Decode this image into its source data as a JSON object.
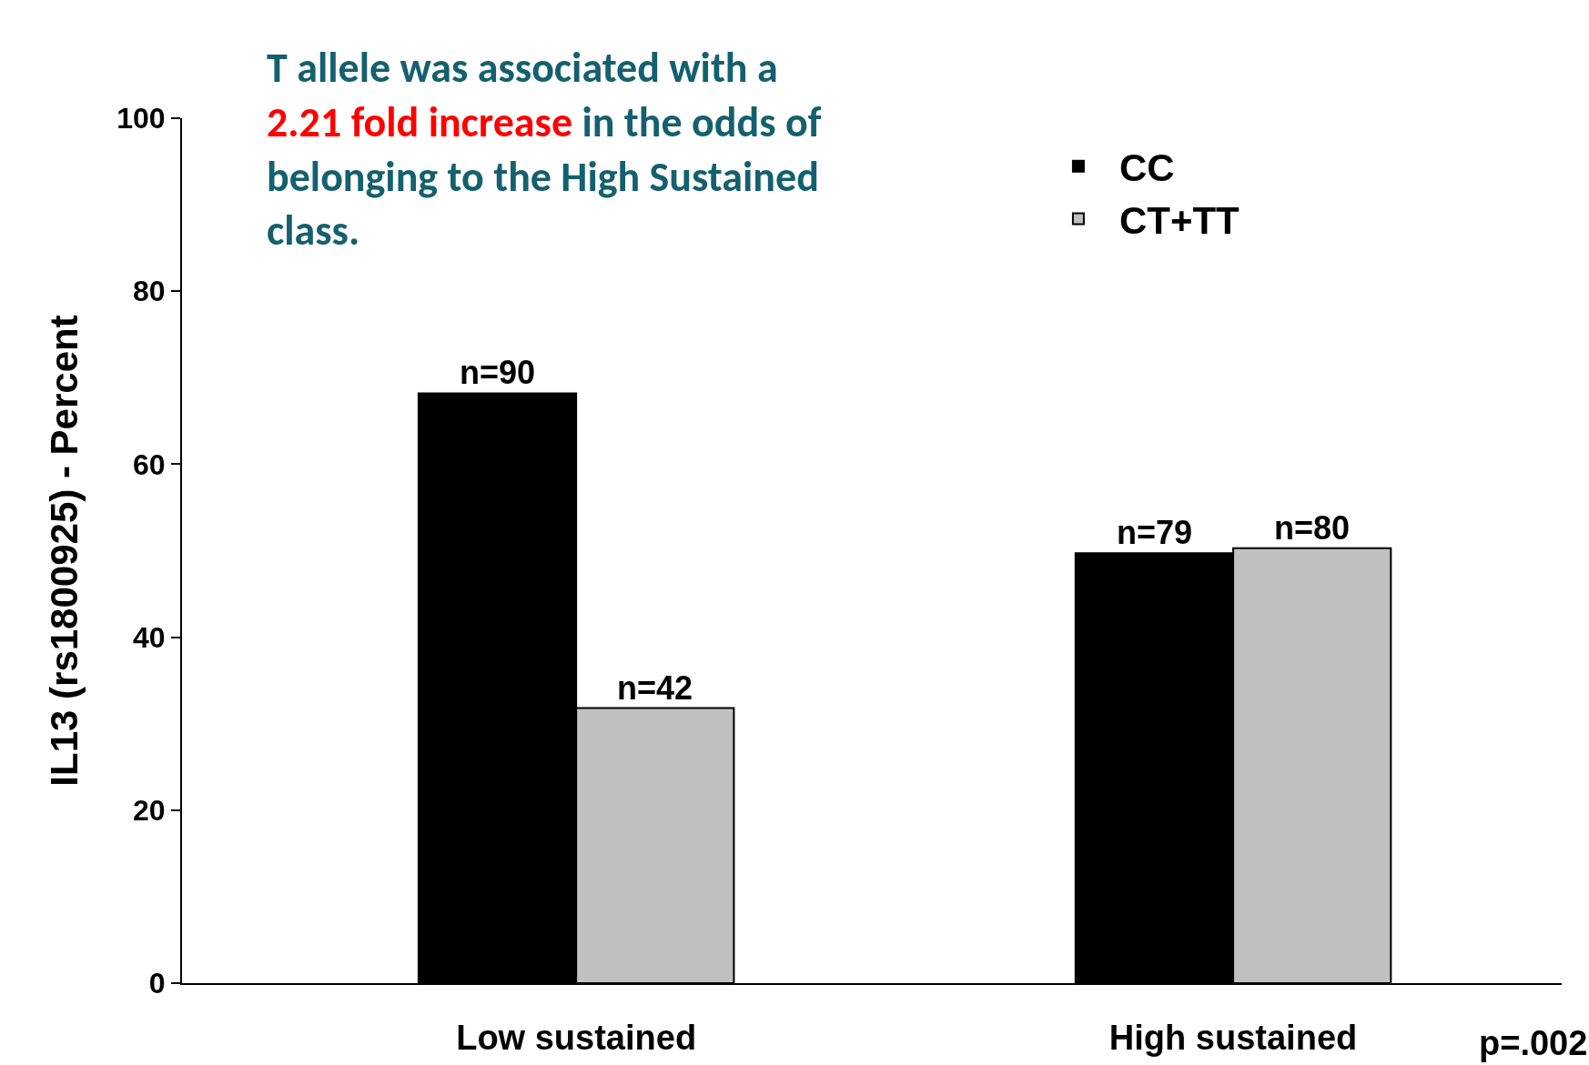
{
  "chart_data": {
    "type": "bar",
    "annotations": [
      "T allele was associated with a",
      "2.21 fold increase",
      "in the odds of belonging to the High Sustained class.",
      "p=.002",
      {
        "text": "n=90",
        "x": "Low sustained",
        "y": 68.2
      },
      {
        "text": "n=42",
        "x": "Low sustained",
        "y": 31.8
      },
      {
        "text": "n=79",
        "x": "High sustained",
        "y": 49.7
      },
      {
        "text": "n=80",
        "x": "High sustained",
        "y": 50.3
      }
    ],
    "ylabel": "IL13 (rs1800925) - Percent",
    "categories": [
      "Low sustained",
      "High sustained"
    ],
    "series": [
      {
        "name": "CC",
        "color": "#000000",
        "values": [
          68.2,
          49.7
        ]
      },
      {
        "name": "CT+TT",
        "color": "#c0c0c0",
        "values": [
          31.8,
          50.3
        ]
      }
    ],
    "ylim": [
      0,
      100
    ],
    "yticks": [
      0,
      20,
      40,
      60,
      80,
      100
    ],
    "grid": false,
    "legend": "top right"
  }
}
